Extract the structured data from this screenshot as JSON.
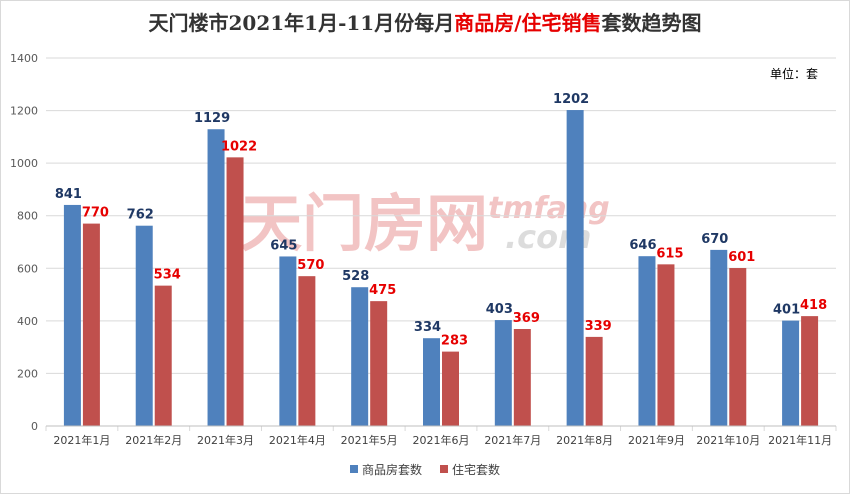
{
  "chart_data": {
    "type": "bar",
    "title_parts": [
      {
        "text": "天门楼市2021年1月-11月份每月",
        "color": "#333333"
      },
      {
        "text": "商品房/住宅销售",
        "color": "#e60000"
      },
      {
        "text": "套数趋势图",
        "color": "#333333"
      }
    ],
    "unit_label": "单位：套",
    "categories": [
      "2021年1月",
      "2021年2月",
      "2021年3月",
      "2021年4月",
      "2021年5月",
      "2021年6月",
      "2021年7月",
      "2021年8月",
      "2021年9月",
      "2021年10月",
      "2021年11月"
    ],
    "series": [
      {
        "name": "商品房套数",
        "color": "#4f81bd",
        "label_color": "#1f3864",
        "values": [
          841,
          762,
          1129,
          645,
          528,
          334,
          403,
          1202,
          646,
          670,
          401
        ]
      },
      {
        "name": "住宅套数",
        "color": "#c0504d",
        "label_color": "#e60000",
        "values": [
          770,
          534,
          1022,
          570,
          475,
          283,
          369,
          339,
          615,
          601,
          418
        ]
      }
    ],
    "ylim": [
      0,
      1400
    ],
    "yticks": [
      0,
      200,
      400,
      600,
      800,
      1000,
      1200,
      1400
    ],
    "grid": true,
    "legend": "bottom",
    "watermark": {
      "text_cn": "天门房网",
      "text_en": "tmfang",
      "text_domain": ".com"
    }
  }
}
